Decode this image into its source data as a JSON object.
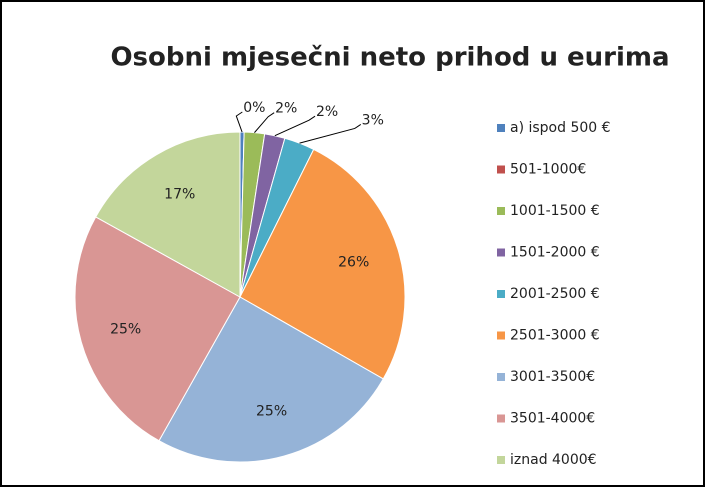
{
  "chart_data": {
    "type": "pie",
    "title": "Osobni mjesečni neto prihod u eurima",
    "categories": [
      "a) ispod 500 €",
      "501-1000€",
      "1001-1500 €",
      "1501-2000 €",
      "2001-2500 €",
      "2501-3000 €",
      "3001-3500€",
      "3501-4000€",
      "iznad 4000€"
    ],
    "values": [
      0.4,
      0,
      2,
      2,
      3,
      26,
      25,
      25,
      17
    ],
    "value_labels": [
      "0%",
      null,
      "2%",
      "2%",
      "3%",
      "26%",
      "25%",
      "25%",
      "17%"
    ],
    "colors": [
      "#4f81bd",
      "#c0504d",
      "#9bbb59",
      "#8064a2",
      "#4bacc6",
      "#f79646",
      "#95b3d7",
      "#d99694",
      "#c3d69b"
    ],
    "legend": "right"
  }
}
